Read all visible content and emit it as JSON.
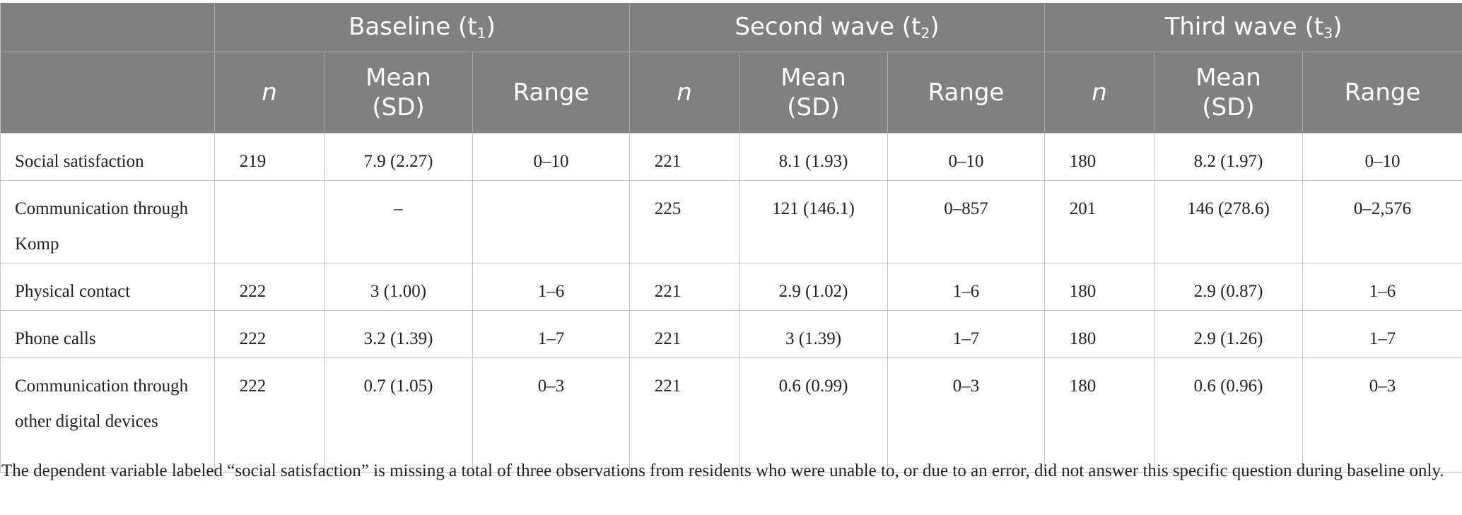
{
  "table": {
    "groups": [
      {
        "label": "Baseline (t",
        "sub": "1",
        "close": ")"
      },
      {
        "label": "Second wave (t",
        "sub": "2",
        "close": ")"
      },
      {
        "label": "Third wave (t",
        "sub": "3",
        "close": ")"
      }
    ],
    "subheaders": {
      "n": "n",
      "mean_line1": "Mean",
      "mean_line2": "(SD)",
      "range": "Range"
    },
    "rows": [
      {
        "label": "Social satisfaction",
        "t1": {
          "n": "219",
          "mean": "7.9 (2.27)",
          "range": "0–10"
        },
        "t2": {
          "n": "221",
          "mean": "8.1 (1.93)",
          "range": "0–10"
        },
        "t3": {
          "n": "180",
          "mean": "8.2 (1.97)",
          "range": "0–10"
        }
      },
      {
        "label": "Communication through Komp",
        "t1": {
          "n": "",
          "mean": "–",
          "range": ""
        },
        "t2": {
          "n": "225",
          "mean": "121 (146.1)",
          "range": "0–857"
        },
        "t3": {
          "n": "201",
          "mean": "146 (278.6)",
          "range": "0–2,576"
        }
      },
      {
        "label": "Physical contact",
        "t1": {
          "n": "222",
          "mean": "3 (1.00)",
          "range": "1–6"
        },
        "t2": {
          "n": "221",
          "mean": "2.9 (1.02)",
          "range": "1–6"
        },
        "t3": {
          "n": "180",
          "mean": "2.9 (0.87)",
          "range": "1–6"
        }
      },
      {
        "label": "Phone calls",
        "t1": {
          "n": "222",
          "mean": "3.2 (1.39)",
          "range": "1–7"
        },
        "t2": {
          "n": "221",
          "mean": "3 (1.39)",
          "range": "1–7"
        },
        "t3": {
          "n": "180",
          "mean": "2.9 (1.26)",
          "range": "1–7"
        }
      },
      {
        "label": "Communication through other digital devices",
        "t1": {
          "n": "222",
          "mean": "0.7 (1.05)",
          "range": "0–3"
        },
        "t2": {
          "n": "221",
          "mean": "0.6 (0.99)",
          "range": "0–3"
        },
        "t3": {
          "n": "180",
          "mean": "0.6 (0.96)",
          "range": "0–3"
        }
      }
    ]
  },
  "footnote": "The dependent variable labeled “social satisfaction” is missing a total of three observations from residents who were unable to, or due to an error, did not answer this specific question during baseline only."
}
